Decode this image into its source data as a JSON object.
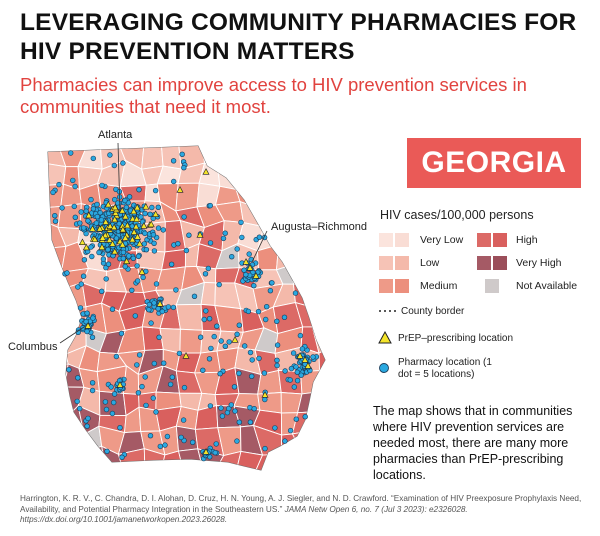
{
  "title": "LEVERAGING COMMUNITY PHARMACIES FOR HIV PREVENTION MATTERS",
  "subtitle": "Pharmacies can improve access to HIV prevention services in communities that need it most.",
  "state_badge": "GEORGIA",
  "cities": [
    "Atlanta",
    "Augusta–Richmond",
    "Columbus"
  ],
  "legend": {
    "title": "HIV cases/100,000 persons",
    "categories": [
      {
        "label": "Very Low",
        "colors": [
          "#fbe4dd",
          "#f9ddd5"
        ]
      },
      {
        "label": "Low",
        "colors": [
          "#f6c3b6",
          "#f4b9aa"
        ]
      },
      {
        "label": "Medium",
        "colors": [
          "#ee9a88",
          "#ec8f7d"
        ]
      },
      {
        "label": "High",
        "colors": [
          "#dc6a66",
          "#d9605e"
        ]
      },
      {
        "label": "Very High",
        "colors": [
          "#a55a65",
          "#9b4e5a"
        ]
      },
      {
        "label": "Not Available",
        "colors": [
          "#cfcaca"
        ]
      }
    ],
    "county_border": "County border",
    "prep_location": "PrEP–prescribing location",
    "pharmacy_location": "Pharmacy location (1 dot = 5 locations)",
    "pharmacy_note": "(1 dot = 5 locations)"
  },
  "note": "The map shows that in communities where HIV prevention services are needed most, there are many more pharmacies than PrEP-prescribing locations.",
  "citation": {
    "authors": "Harrington, K. R. V., C. Chandra, D. I. Alohan, D. Cruz, H. N. Young, A. J. Siegler, and N. D. Crawford. “Examination of HIV Preexposure Prophylaxis Need, Availability, and Potential Pharmacy Integration in the Southeastern US.”",
    "journal": "JAMA Netw Open 6, no. 7 (Jul 3 2023): e2326028. https://dx.doi.org/10.1001/jamanetworkopen.2023.26028."
  },
  "colors": {
    "accent": "#e1433f",
    "badge": "#ea5a57",
    "pharmacy_dot": "#2aa8e0",
    "prep_triangle": "#f4e42a"
  },
  "icons": [
    "prep-triangle-icon",
    "pharmacy-dot-icon",
    "county-border-icon"
  ]
}
